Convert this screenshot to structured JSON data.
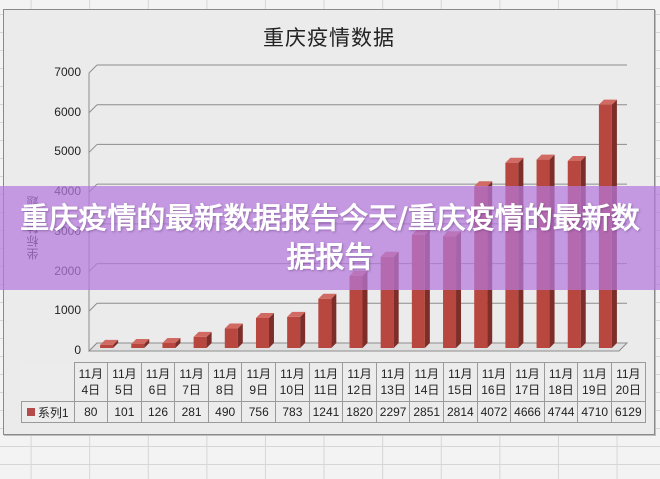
{
  "chart_data": {
    "type": "bar",
    "title": "重庆疫情数据",
    "xlabel": "",
    "ylabel": "坐标轴标题",
    "ylim": [
      0,
      7000
    ],
    "y_ticks": [
      "0",
      "1000",
      "2000",
      "3000",
      "4000",
      "5000",
      "6000",
      "7000"
    ],
    "grid": true,
    "legend_position": "data-table",
    "bar_color": "#b44a4a",
    "categories": [
      "11月4日",
      "11月5日",
      "11月6日",
      "11月7日",
      "11月8日",
      "11月9日",
      "11月10日",
      "11月11日",
      "11月12日",
      "11月13日",
      "11月14日",
      "11月15日",
      "11月16日",
      "11月17日",
      "11月18日",
      "11月19日",
      "11月20日"
    ],
    "category_lines": [
      [
        "11月",
        "4日"
      ],
      [
        "11月",
        "5日"
      ],
      [
        "11月",
        "6日"
      ],
      [
        "11月",
        "7日"
      ],
      [
        "11月",
        "8日"
      ],
      [
        "11月",
        "9日"
      ],
      [
        "11月",
        "10日"
      ],
      [
        "11月",
        "11日"
      ],
      [
        "11月",
        "12日"
      ],
      [
        "11月",
        "13日"
      ],
      [
        "11月",
        "14日"
      ],
      [
        "11月",
        "15日"
      ],
      [
        "11月",
        "16日"
      ],
      [
        "11月",
        "17日"
      ],
      [
        "11月",
        "18日"
      ],
      [
        "11月",
        "19日"
      ],
      [
        "11月",
        "20日"
      ]
    ],
    "series": [
      {
        "name": "系列1",
        "values": [
          80,
          101,
          126,
          281,
          490,
          756,
          783,
          1241,
          1820,
          2297,
          2851,
          2814,
          4072,
          4666,
          4744,
          4710,
          6129
        ]
      }
    ]
  },
  "overlay": {
    "headline": "重庆疫情的最新数据报告今天/重庆疫情的最新数据报告"
  }
}
